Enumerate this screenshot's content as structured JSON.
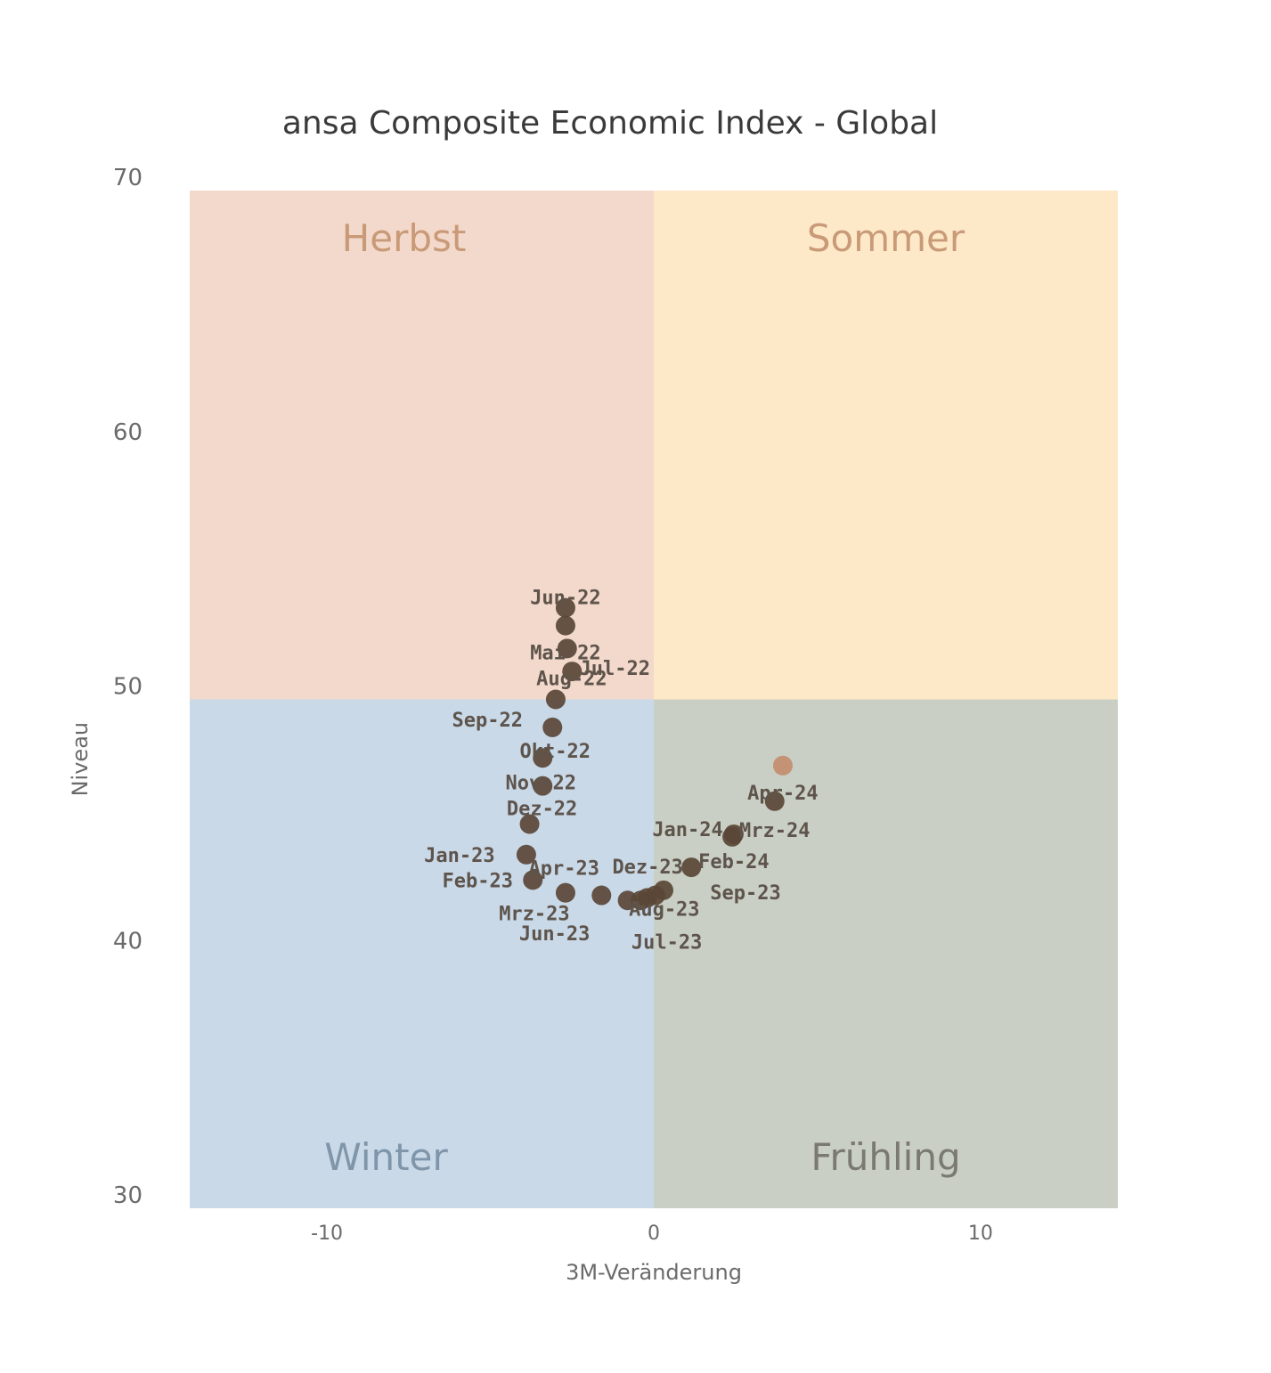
{
  "chart_data": {
    "type": "scatter",
    "title": "ansa Composite Economic Index - Global",
    "xlabel": "3M-Veränderung",
    "ylabel": "Niveau",
    "xlim": [
      -14.2,
      14.2
    ],
    "ylim": [
      30,
      70
    ],
    "x_ticks": [
      "-10",
      "0",
      "10"
    ],
    "y_ticks": [
      "30",
      "40",
      "50",
      "60",
      "70"
    ],
    "grid": false,
    "quadrants": {
      "split_x": 0,
      "split_y": 50,
      "top_left": {
        "label": "Herbst",
        "fill": "#f3d9cb",
        "text_color": "#c99a78"
      },
      "top_right": {
        "label": "Sommer",
        "fill": "#fde9c8",
        "text_color": "#c99a78"
      },
      "bottom_left": {
        "label": "Winter",
        "fill": "#c9d9e8",
        "text_color": "#7f96aa"
      },
      "bottom_right": {
        "label": "Frühling",
        "fill": "#c9cfc4",
        "text_color": "#7a7a72"
      }
    },
    "point_color": "#5a4636",
    "highlight_color": "#c49274",
    "points": [
      {
        "label": "Jun-22",
        "x": -2.7,
        "y": 53.6
      },
      {
        "label": "Mai-22",
        "x": -2.7,
        "y": 52.9
      },
      {
        "label": "",
        "x": -2.65,
        "y": 52.0
      },
      {
        "label": "Jul-22",
        "x": -2.5,
        "y": 51.1
      },
      {
        "label": "Aug-22",
        "x": -3.0,
        "y": 50.0
      },
      {
        "label": "Sep-22",
        "x": -3.1,
        "y": 48.9
      },
      {
        "label": "Okt-22",
        "x": -3.4,
        "y": 47.7
      },
      {
        "label": "Nov-22",
        "x": -3.4,
        "y": 46.6
      },
      {
        "label": "Dez-22",
        "x": -3.8,
        "y": 45.1
      },
      {
        "label": "Jan-23",
        "x": -3.9,
        "y": 43.9
      },
      {
        "label": "Feb-23",
        "x": -3.7,
        "y": 42.9
      },
      {
        "label": "Mrz-23",
        "x": -2.7,
        "y": 42.4
      },
      {
        "label": "Apr-23",
        "x": -1.6,
        "y": 42.3
      },
      {
        "label": "Jun-23",
        "x": -0.8,
        "y": 42.1
      },
      {
        "label": "",
        "x": -0.4,
        "y": 42.1
      },
      {
        "label": "Jul-23",
        "x": -0.2,
        "y": 42.2
      },
      {
        "label": "Aug-23",
        "x": 0.05,
        "y": 42.3
      },
      {
        "label": "Sep-23",
        "x": 0.3,
        "y": 42.5
      },
      {
        "label": "Dez-23",
        "x": 1.15,
        "y": 43.4
      },
      {
        "label": "Feb-24",
        "x": 2.45,
        "y": 44.7
      },
      {
        "label": "Jan-24",
        "x": 2.4,
        "y": 44.6
      },
      {
        "label": "Mrz-24",
        "x": 3.7,
        "y": 46.0
      },
      {
        "label": "Apr-24",
        "x": 3.95,
        "y": 47.4,
        "highlight": true
      }
    ]
  }
}
